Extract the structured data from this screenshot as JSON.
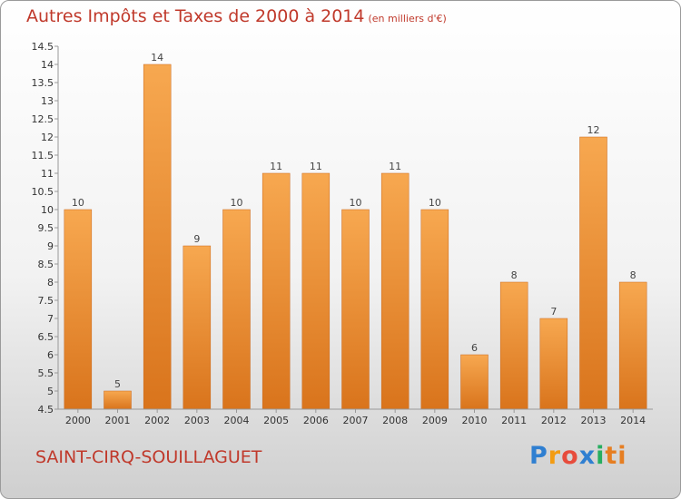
{
  "header": {
    "title": "Autres Impôts et Taxes de 2000 à 2014",
    "unit": "(en milliers d'€)"
  },
  "footer": {
    "commune": "SAINT-CIRQ-SOUILLAGUET",
    "logo": [
      "P",
      "r",
      "o",
      "x",
      "i",
      "ti"
    ]
  },
  "colors": {
    "bar_top": "#f7a850",
    "bar_bottom": "#d9741c",
    "title": "#c0392b"
  },
  "chart_data": {
    "type": "bar",
    "title": "Autres Impôts et Taxes de 2000 à 2014",
    "categories": [
      "2000",
      "2001",
      "2002",
      "2003",
      "2004",
      "2005",
      "2006",
      "2007",
      "2008",
      "2009",
      "2010",
      "2011",
      "2012",
      "2013",
      "2014"
    ],
    "values": [
      10,
      5,
      14,
      9,
      10,
      11,
      11,
      10,
      11,
      10,
      6,
      8,
      7,
      12,
      8
    ],
    "ylim": [
      4.5,
      14.5
    ],
    "yticks": [
      "4.5",
      "5",
      "5.5",
      "6",
      "6.5",
      "7",
      "7.5",
      "8",
      "8.5",
      "9",
      "9.5",
      "10",
      "10.5",
      "11",
      "11.5",
      "12",
      "12.5",
      "13",
      "13.5",
      "14",
      "14.5"
    ],
    "grid": false,
    "legend": "none"
  }
}
